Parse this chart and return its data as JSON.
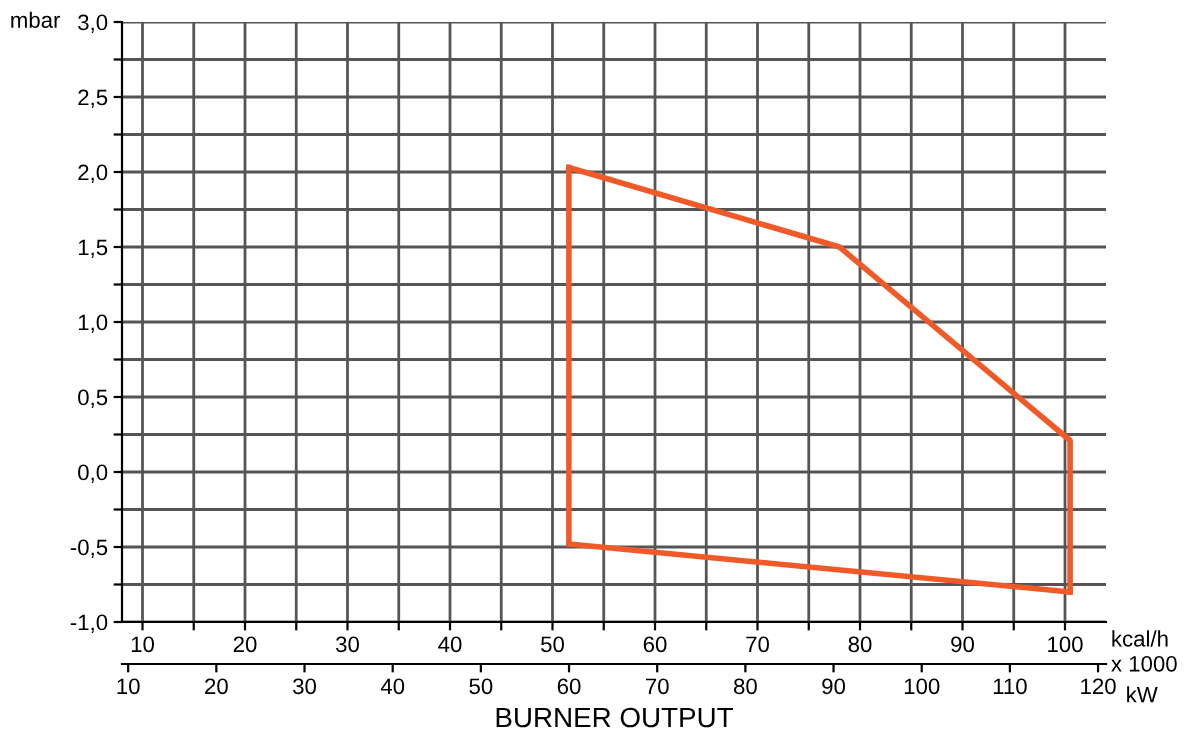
{
  "chart_data": {
    "type": "line",
    "xlabel": "BURNER OUTPUT",
    "ylabel": "mbar",
    "x2label": "kW",
    "annotations": [
      "kcal/h",
      "x 1000"
    ],
    "series": [
      {
        "color": "#f05a28",
        "x": [
          51.6,
          78.0,
          100.5,
          100.5
        ],
        "values": [
          2.03,
          1.5,
          0.21,
          -0.8
        ]
      },
      {
        "color": "#f05a28",
        "x": [
          51.6,
          100.5
        ],
        "values": [
          -0.48,
          -0.8
        ]
      },
      {
        "color": "#f05a28",
        "x": [
          51.6,
          51.6
        ],
        "values": [
          -0.48,
          2.03
        ]
      }
    ],
    "xlim": [
      8,
      104
    ],
    "xticks": [
      10,
      {
        "value": 15,
        "label": null
      },
      20,
      {
        "value": 25,
        "label": null
      },
      30,
      {
        "value": 35,
        "label": null
      },
      40,
      {
        "value": 45,
        "label": null
      },
      50,
      {
        "value": 55,
        "label": null
      },
      60,
      {
        "value": 65,
        "label": null
      },
      70,
      {
        "value": 75,
        "label": null
      },
      80,
      {
        "value": 85,
        "label": null
      },
      90,
      {
        "value": 95,
        "label": null
      },
      100
    ],
    "x2lim": [
      9.3,
      120.9
    ],
    "x2ticks": [
      10,
      20,
      30,
      40,
      50,
      60,
      70,
      80,
      90,
      100,
      110,
      120
    ],
    "ylim": [
      -1.0,
      3.0
    ],
    "yticks": [
      {
        "value": -1.0,
        "label": "-1,0"
      },
      {
        "value": -0.75,
        "label": null
      },
      {
        "value": -0.5,
        "label": "-0,5"
      },
      {
        "value": -0.25,
        "label": null
      },
      {
        "value": 0.0,
        "label": "0,0"
      },
      {
        "value": 0.25,
        "label": null
      },
      {
        "value": 0.5,
        "label": "0,5"
      },
      {
        "value": 0.75,
        "label": null
      },
      {
        "value": 1.0,
        "label": "1,0"
      },
      {
        "value": 1.25,
        "label": null
      },
      {
        "value": 1.5,
        "label": "1,5"
      },
      {
        "value": 1.75,
        "label": null
      },
      {
        "value": 2.0,
        "label": "2,0"
      },
      {
        "value": 2.25,
        "label": null
      },
      {
        "value": 2.5,
        "label": "2,5"
      },
      {
        "value": 2.75,
        "label": null
      },
      {
        "value": 3.0,
        "label": "3,0"
      }
    ],
    "grid": true,
    "marker": "none",
    "line_style": "solid"
  }
}
